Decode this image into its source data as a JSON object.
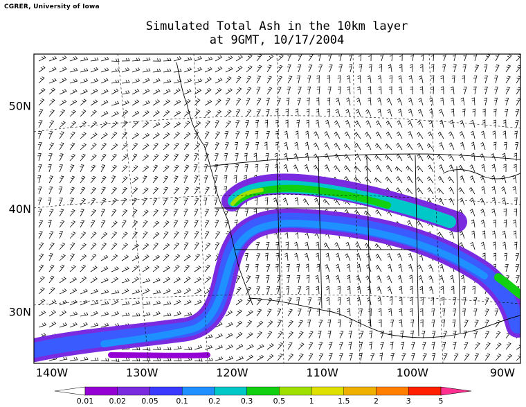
{
  "header": {
    "credit": "CGRER, University of Iowa",
    "title_line1": "Simulated Total Ash in the 10km layer",
    "title_line2": "at 9GMT, 10/17/2004"
  },
  "map": {
    "lon_labels": [
      "140W",
      "130W",
      "120W",
      "110W",
      "100W",
      "90W"
    ],
    "lat_labels": [
      "50N",
      "40N",
      "30N"
    ],
    "lon_values": [
      -140,
      -130,
      -120,
      -110,
      -100,
      -90
    ],
    "lat_values": [
      50,
      40,
      30
    ],
    "extent": {
      "lon_min": -142,
      "lon_max": -88,
      "lat_min": 25,
      "lat_max": 55
    }
  },
  "legend": {
    "labels": [
      "0.01",
      "0.02",
      "0.05",
      "0.1",
      "0.2",
      "0.3",
      "0.5",
      "1",
      "1.5",
      "2",
      "3",
      "5"
    ],
    "colors": [
      "#ffffff",
      "#9400d3",
      "#7a2be0",
      "#3a3aff",
      "#1e90ff",
      "#00c8c8",
      "#10d010",
      "#a0e000",
      "#e0e000",
      "#f0b000",
      "#ff8000",
      "#ff2000",
      "#ff3090"
    ]
  }
}
